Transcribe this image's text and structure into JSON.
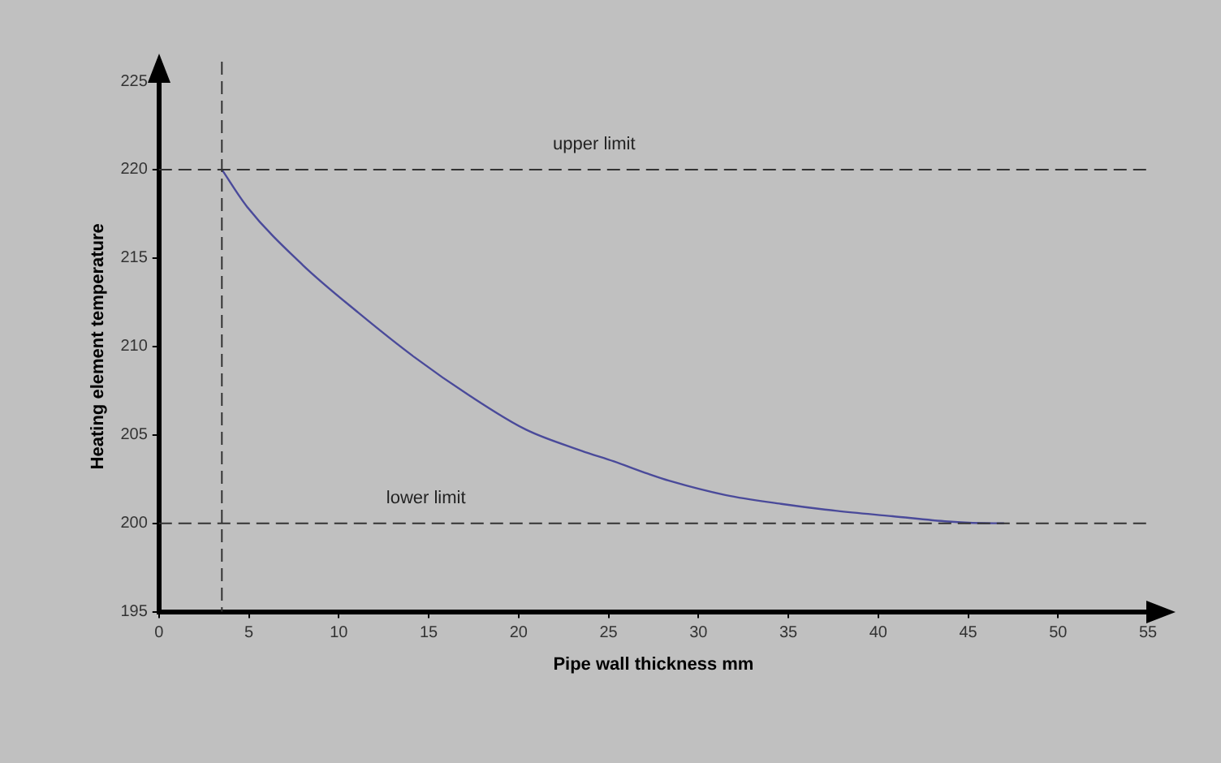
{
  "chart_data": {
    "type": "line",
    "xlabel": "Pipe wall thickness mm",
    "ylabel": "Heating element temperature",
    "x": [
      3.5,
      4.9,
      8.0,
      11.1,
      14.2,
      17.3,
      20.4,
      23.5,
      25.3,
      27.2,
      28.4,
      31.5,
      34.6,
      37.7,
      40.8,
      43.9,
      46.4,
      47.0
    ],
    "series": [
      {
        "color": "#4a4a9a",
        "values": [
          220,
          217.9,
          214.6,
          211.9,
          209.4,
          207.2,
          205.3,
          204.1,
          203.5,
          202.8,
          202.4,
          201.6,
          201.1,
          200.7,
          200.4,
          200.1,
          200.0,
          200.0
        ]
      }
    ],
    "xlim": [
      0,
      55
    ],
    "xticks": [
      0,
      5,
      10,
      15,
      20,
      25,
      30,
      35,
      40,
      45,
      50,
      55
    ],
    "ylim": [
      195,
      225
    ],
    "yticks": [
      195,
      200,
      205,
      210,
      215,
      220,
      225
    ],
    "ref_lines": [
      {
        "axis": "y",
        "value": 220,
        "label": "upper limit",
        "color": "#333333",
        "line_style": "dashed"
      },
      {
        "axis": "y",
        "value": 200,
        "label": "lower limit",
        "color": "#333333",
        "line_style": "dashed"
      },
      {
        "axis": "x",
        "value": 3.5,
        "color": "#333333",
        "line_style": "dashed"
      }
    ],
    "grid": false,
    "legend": false,
    "marker": "none",
    "line_style": "solid"
  }
}
